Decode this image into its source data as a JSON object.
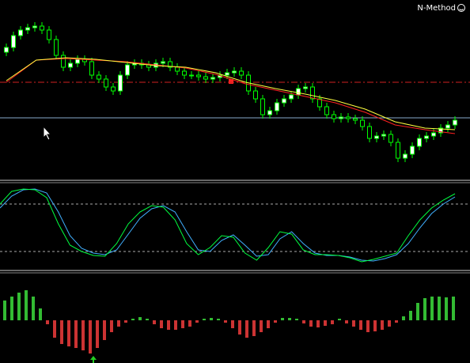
{
  "header": {
    "label": "N-Method"
  },
  "price": {
    "ylim": [
      0,
      226
    ],
    "open": [
      160,
      166,
      181,
      188,
      191,
      193,
      188,
      176,
      156,
      141,
      146,
      151,
      148,
      131,
      126,
      116,
      111,
      131,
      144,
      146,
      144,
      141,
      146,
      148,
      141,
      136,
      131,
      131,
      129,
      126,
      128,
      131,
      134,
      136,
      131,
      111,
      101,
      81,
      86,
      96,
      101,
      106,
      114,
      116,
      101,
      91,
      81,
      76,
      78,
      76,
      74,
      66,
      51,
      54,
      56,
      46,
      26,
      31,
      41,
      51,
      54,
      58,
      64,
      68
    ],
    "high": [
      171,
      186,
      193,
      196,
      198,
      198,
      193,
      181,
      161,
      151,
      156,
      156,
      153,
      136,
      131,
      121,
      136,
      149,
      151,
      151,
      149,
      151,
      153,
      153,
      146,
      141,
      136,
      136,
      134,
      133,
      136,
      139,
      141,
      141,
      136,
      116,
      106,
      91,
      101,
      106,
      111,
      119,
      121,
      121,
      106,
      96,
      86,
      83,
      83,
      81,
      79,
      71,
      59,
      61,
      61,
      51,
      36,
      46,
      56,
      59,
      63,
      69,
      73,
      79
    ],
    "low": [
      155,
      161,
      176,
      183,
      186,
      183,
      171,
      151,
      136,
      136,
      141,
      143,
      126,
      121,
      111,
      106,
      106,
      126,
      139,
      139,
      136,
      136,
      141,
      136,
      131,
      126,
      126,
      124,
      121,
      121,
      123,
      126,
      129,
      126,
      106,
      96,
      76,
      76,
      81,
      91,
      96,
      101,
      109,
      96,
      86,
      76,
      71,
      71,
      71,
      69,
      61,
      46,
      46,
      49,
      41,
      21,
      21,
      26,
      36,
      46,
      49,
      53,
      59,
      63
    ],
    "close": [
      166,
      181,
      188,
      191,
      193,
      188,
      176,
      156,
      141,
      146,
      151,
      148,
      131,
      126,
      116,
      111,
      131,
      144,
      146,
      144,
      141,
      146,
      148,
      141,
      136,
      131,
      131,
      129,
      126,
      128,
      131,
      134,
      136,
      131,
      111,
      101,
      81,
      86,
      96,
      101,
      106,
      114,
      116,
      101,
      91,
      81,
      76,
      78,
      76,
      74,
      66,
      51,
      54,
      56,
      46,
      26,
      31,
      41,
      51,
      54,
      58,
      64,
      68,
      74
    ],
    "bull_color": "#ffffff",
    "bear_color": "#000000",
    "edge_color": "#00ff00",
    "ma": [
      {
        "color": "#ff2020",
        "values": [
          122,
          150,
          152,
          150,
          148,
          144,
          140,
          132,
          120,
          112,
          104,
          96,
          84,
          68,
          62,
          57
        ]
      },
      {
        "color": "#ffff40",
        "values": [
          124,
          150,
          153,
          151,
          147,
          143,
          141,
          134,
          122,
          114,
          107,
          99,
          88,
          72,
          64,
          62
        ]
      }
    ],
    "levels": [
      {
        "value": 122,
        "color": "#d02020",
        "dash": true
      },
      {
        "value": 77,
        "color": "#88aacc",
        "dash": false
      }
    ]
  },
  "oscillator": {
    "ylim": [
      0,
      100
    ],
    "levels": [
      80,
      20
    ],
    "level_color": "#aaaaaa",
    "series": [
      {
        "color": "#00ff40",
        "values": [
          80,
          96,
          99,
          98,
          88,
          55,
          28,
          20,
          15,
          14,
          30,
          55,
          70,
          78,
          76,
          60,
          30,
          16,
          25,
          40,
          38,
          18,
          9,
          25,
          45,
          42,
          22,
          16,
          16,
          15,
          12,
          7,
          10,
          14,
          18,
          40,
          60,
          75,
          85,
          93
        ]
      },
      {
        "color": "#40b0ff",
        "values": [
          75,
          90,
          98,
          99,
          94,
          70,
          40,
          24,
          18,
          16,
          22,
          42,
          62,
          74,
          78,
          70,
          45,
          22,
          20,
          34,
          41,
          28,
          14,
          16,
          36,
          45,
          30,
          18,
          15,
          15,
          13,
          9,
          8,
          11,
          16,
          30,
          50,
          68,
          80,
          89
        ]
      }
    ]
  },
  "histogram": {
    "ylim": [
      -54,
      57
    ],
    "up_color": "#33bb33",
    "down_color": "#cc3333",
    "values": [
      25,
      30,
      35,
      38,
      30,
      15,
      -5,
      -22,
      -30,
      -33,
      -35,
      -38,
      -42,
      -35,
      -25,
      -15,
      -8,
      -3,
      2,
      4,
      2,
      -5,
      -10,
      -12,
      -12,
      -10,
      -8,
      -3,
      2,
      3,
      2,
      -3,
      -10,
      -18,
      -22,
      -20,
      -15,
      -10,
      -3,
      3,
      3,
      2,
      -4,
      -8,
      -9,
      -7,
      -5,
      2,
      -4,
      -8,
      -12,
      -15,
      -14,
      -12,
      -8,
      -3,
      5,
      12,
      22,
      28,
      30,
      30,
      29,
      30
    ]
  }
}
